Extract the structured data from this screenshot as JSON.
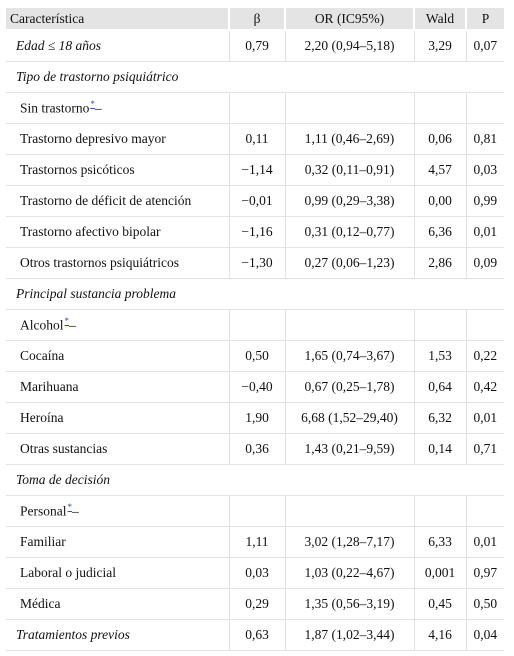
{
  "table": {
    "headers": [
      "Característica",
      "β",
      "OR (IC95%)",
      "Wald",
      "P"
    ],
    "rows": [
      {
        "kind": "data",
        "style": "italic",
        "label": "Edad ≤ 18 años",
        "beta": "0,79",
        "or": "2,20 (0,94–5,18)",
        "wald": "3,29",
        "p": "0,07"
      },
      {
        "kind": "section",
        "label": "Tipo de trastorno psiquiátrico"
      },
      {
        "kind": "ref",
        "label": "Sin trastorno",
        "mark": "*",
        "suffix": "–"
      },
      {
        "kind": "data",
        "label": "Trastorno depresivo mayor",
        "beta": "0,11",
        "or": "1,11 (0,46–2,69)",
        "wald": "0,06",
        "p": "0,81"
      },
      {
        "kind": "data",
        "label": "Trastornos psicóticos",
        "beta": "−1,14",
        "or": "0,32 (0,11–0,91)",
        "wald": "4,57",
        "p": "0,03"
      },
      {
        "kind": "data",
        "label": "Trastorno de déficit de atención",
        "beta": "−0,01",
        "or": "0,99 (0,29–3,38)",
        "wald": "0,00",
        "p": "0,99"
      },
      {
        "kind": "data",
        "label": "Trastorno afectivo bipolar",
        "beta": "−1,16",
        "or": "0,31 (0,12–0,77)",
        "wald": "6,36",
        "p": "0,01"
      },
      {
        "kind": "data",
        "label": "Otros trastornos psiquiátricos",
        "beta": "−1,30",
        "or": "0,27 (0,06–1,23)",
        "wald": "2,86",
        "p": "0,09"
      },
      {
        "kind": "section",
        "label": "Principal sustancia problema"
      },
      {
        "kind": "ref",
        "label": "Alcohol",
        "mark": "*",
        "suffix": "–"
      },
      {
        "kind": "data",
        "label": "Cocaína",
        "beta": "0,50",
        "or": "1,65 (0,74–3,67)",
        "wald": "1,53",
        "p": "0,22"
      },
      {
        "kind": "data",
        "label": "Marihuana",
        "beta": "−0,40",
        "or": "0,67 (0,25–1,78)",
        "wald": "0,64",
        "p": "0,42"
      },
      {
        "kind": "data",
        "label": "Heroína",
        "beta": "1,90",
        "or": "6,68 (1,52–29,40)",
        "wald": "6,32",
        "p": "0,01"
      },
      {
        "kind": "data",
        "label": "Otras sustancias",
        "beta": "0,36",
        "or": "1,43 (0,21–9,59)",
        "wald": "0,14",
        "p": "0,71"
      },
      {
        "kind": "section",
        "label": "Toma de decisión"
      },
      {
        "kind": "ref",
        "label": "Personal",
        "mark": "*",
        "suffix": "–"
      },
      {
        "kind": "data",
        "label": "Familiar",
        "beta": "1,11",
        "or": "3,02 (1,28–7,17)",
        "wald": "6,33",
        "p": "0,01"
      },
      {
        "kind": "data",
        "label": "Laboral o judicial",
        "beta": "0,03",
        "or": "1,03 (0,22–4,67)",
        "wald": "0,001",
        "p": "0,97"
      },
      {
        "kind": "data",
        "label": "Médica",
        "beta": "0,29",
        "or": "1,35 (0,56–3,19)",
        "wald": "0,45",
        "p": "0,50"
      },
      {
        "kind": "data",
        "style": "italic",
        "label": "Tratamientos previos",
        "beta": "0,63",
        "or": "1,87 (1,02–3,44)",
        "wald": "4,16",
        "p": "0,04"
      }
    ]
  }
}
